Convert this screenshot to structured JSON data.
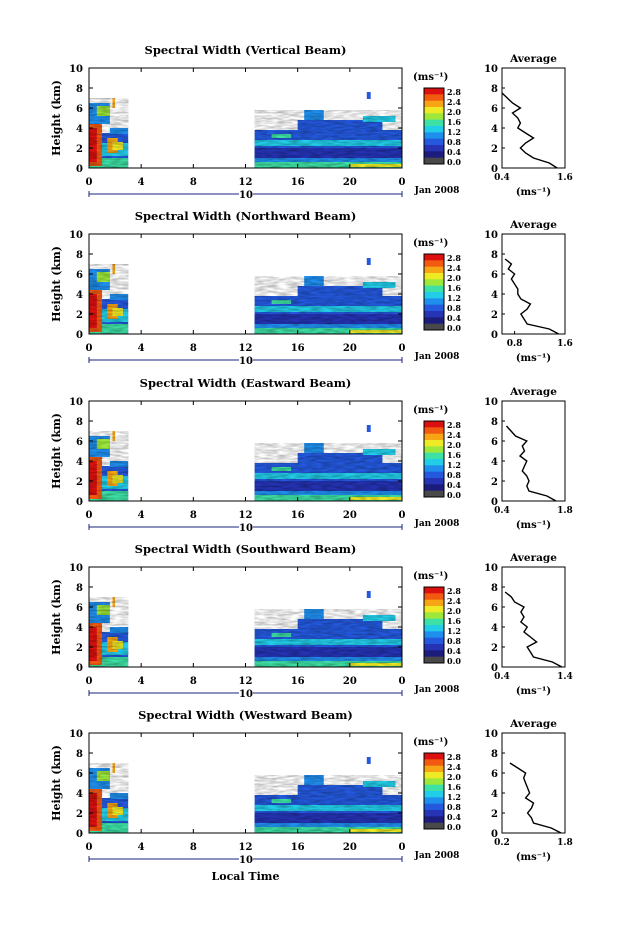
{
  "colorbar": {
    "unit_label": "(ms⁻¹)",
    "tick_labels": [
      "2.8",
      "2.4",
      "2.0",
      "1.6",
      "1.2",
      "0.8",
      "0.4",
      "0.0"
    ],
    "colors": [
      "#dd1010",
      "#f25a10",
      "#f7a515",
      "#eeea25",
      "#9de83a",
      "#3de0a5",
      "#22cde8",
      "#1f8fee",
      "#2459de",
      "#2533b4",
      "#1c1c7c",
      "#494949"
    ]
  },
  "date_label": "Jan 2008",
  "xaxis_label": "Local Time",
  "chart_data": [
    {
      "type": "heatmap",
      "title": "Spectral Width (Vertical Beam)",
      "ylabel": "Height (km)",
      "y_ticks": [
        "0",
        "2",
        "4",
        "6",
        "8",
        "10"
      ],
      "x_ticks": [
        "0",
        "4",
        "8",
        "12",
        "16",
        "20",
        "0"
      ],
      "day_label": "10",
      "ylim": [
        0,
        10
      ],
      "avg": {
        "title": "Average",
        "xlabel": "(ms⁻¹)",
        "x_ticks": [
          "0.4",
          "1.6"
        ],
        "xlim": [
          0.4,
          1.6
        ],
        "y_ticks": [
          "0",
          "2",
          "4",
          "6",
          "8",
          "10"
        ],
        "profile": [
          [
            1.45,
            0
          ],
          [
            1.3,
            0.5
          ],
          [
            1.0,
            1
          ],
          [
            0.85,
            1.5
          ],
          [
            0.75,
            2
          ],
          [
            0.85,
            2.5
          ],
          [
            1.0,
            3
          ],
          [
            0.85,
            3.5
          ],
          [
            0.7,
            4
          ],
          [
            0.75,
            4.5
          ],
          [
            0.7,
            5
          ],
          [
            0.6,
            5.5
          ],
          [
            0.75,
            6
          ],
          [
            0.6,
            6.5
          ],
          [
            0.5,
            7
          ],
          [
            0.4,
            7.5
          ]
        ]
      }
    },
    {
      "type": "heatmap",
      "title": "Spectral Width (Northward Beam)",
      "ylabel": "Height (km)",
      "y_ticks": [
        "0",
        "2",
        "4",
        "6",
        "8",
        "10"
      ],
      "x_ticks": [
        "0",
        "4",
        "8",
        "12",
        "16",
        "20",
        "0"
      ],
      "day_label": "10",
      "ylim": [
        0,
        10
      ],
      "avg": {
        "title": "Average",
        "xlabel": "(ms⁻¹)",
        "x_ticks": [
          "0.8",
          "1.6"
        ],
        "xlim": [
          0.6,
          1.6
        ],
        "y_ticks": [
          "0",
          "2",
          "4",
          "6",
          "8",
          "10"
        ],
        "profile": [
          [
            1.5,
            0
          ],
          [
            1.35,
            0.5
          ],
          [
            1.0,
            1
          ],
          [
            0.95,
            1.5
          ],
          [
            0.9,
            2
          ],
          [
            1.0,
            2.5
          ],
          [
            1.05,
            3
          ],
          [
            0.9,
            3.5
          ],
          [
            0.85,
            4
          ],
          [
            0.85,
            4.5
          ],
          [
            0.8,
            5
          ],
          [
            0.75,
            5.5
          ],
          [
            0.8,
            6
          ],
          [
            0.7,
            6.5
          ],
          [
            0.75,
            7
          ],
          [
            0.65,
            7.5
          ]
        ]
      }
    },
    {
      "type": "heatmap",
      "title": "Spectral Width (Eastward Beam)",
      "ylabel": "Height (km)",
      "y_ticks": [
        "0",
        "2",
        "4",
        "6",
        "8",
        "10"
      ],
      "x_ticks": [
        "0",
        "4",
        "8",
        "12",
        "16",
        "20",
        "0"
      ],
      "day_label": "10",
      "ylim": [
        0,
        10
      ],
      "avg": {
        "title": "Average",
        "xlabel": "(ms⁻¹)",
        "x_ticks": [
          "0.4",
          "1.8"
        ],
        "xlim": [
          0.4,
          1.8
        ],
        "y_ticks": [
          "0",
          "2",
          "4",
          "6",
          "8",
          "10"
        ],
        "profile": [
          [
            1.6,
            0
          ],
          [
            1.4,
            0.5
          ],
          [
            1.0,
            1
          ],
          [
            0.95,
            1.5
          ],
          [
            1.0,
            2
          ],
          [
            0.95,
            2.5
          ],
          [
            0.85,
            3
          ],
          [
            0.9,
            3.5
          ],
          [
            0.95,
            4
          ],
          [
            0.8,
            4.5
          ],
          [
            0.9,
            5
          ],
          [
            0.85,
            5.5
          ],
          [
            0.95,
            6
          ],
          [
            0.7,
            6.5
          ],
          [
            0.6,
            7
          ],
          [
            0.5,
            7.5
          ]
        ]
      }
    },
    {
      "type": "heatmap",
      "title": "Spectral Width (Southward Beam)",
      "ylabel": "Height (km)",
      "y_ticks": [
        "0",
        "2",
        "4",
        "6",
        "8",
        "10"
      ],
      "x_ticks": [
        "0",
        "4",
        "8",
        "12",
        "16",
        "20",
        "0"
      ],
      "day_label": "10",
      "ylim": [
        0,
        10
      ],
      "avg": {
        "title": "Average",
        "xlabel": "(ms⁻¹)",
        "x_ticks": [
          "0.4",
          "1.4"
        ],
        "xlim": [
          0.4,
          1.4
        ],
        "y_ticks": [
          "0",
          "2",
          "4",
          "6",
          "8",
          "10"
        ],
        "profile": [
          [
            1.35,
            0
          ],
          [
            1.2,
            0.5
          ],
          [
            0.9,
            1
          ],
          [
            0.85,
            1.5
          ],
          [
            0.8,
            2
          ],
          [
            0.95,
            2.5
          ],
          [
            0.85,
            3
          ],
          [
            0.75,
            3.5
          ],
          [
            0.8,
            4
          ],
          [
            0.7,
            4.5
          ],
          [
            0.75,
            5
          ],
          [
            0.7,
            5.5
          ],
          [
            0.75,
            6
          ],
          [
            0.6,
            6.5
          ],
          [
            0.55,
            7
          ],
          [
            0.45,
            7.5
          ]
        ]
      }
    },
    {
      "type": "heatmap",
      "title": "Spectral Width (Westward Beam)",
      "ylabel": "Height (km)",
      "y_ticks": [
        "0",
        "2",
        "4",
        "6",
        "8",
        "10"
      ],
      "x_ticks": [
        "0",
        "4",
        "8",
        "12",
        "16",
        "20",
        "0"
      ],
      "day_label": "10",
      "ylim": [
        0,
        10
      ],
      "avg": {
        "title": "Average",
        "xlabel": "(ms⁻¹)",
        "x_ticks": [
          "0.2",
          "1.8"
        ],
        "xlim": [
          0.2,
          1.8
        ],
        "y_ticks": [
          "0",
          "2",
          "4",
          "6",
          "8",
          "10"
        ],
        "profile": [
          [
            1.7,
            0
          ],
          [
            1.45,
            0.5
          ],
          [
            1.0,
            1
          ],
          [
            0.95,
            1.5
          ],
          [
            0.85,
            2
          ],
          [
            0.95,
            2.5
          ],
          [
            1.0,
            3
          ],
          [
            0.8,
            3.5
          ],
          [
            0.9,
            4
          ],
          [
            0.85,
            4.5
          ],
          [
            0.8,
            5
          ],
          [
            0.75,
            5.5
          ],
          [
            0.8,
            6
          ],
          [
            0.6,
            6.5
          ],
          [
            0.4,
            7
          ]
        ]
      }
    }
  ]
}
